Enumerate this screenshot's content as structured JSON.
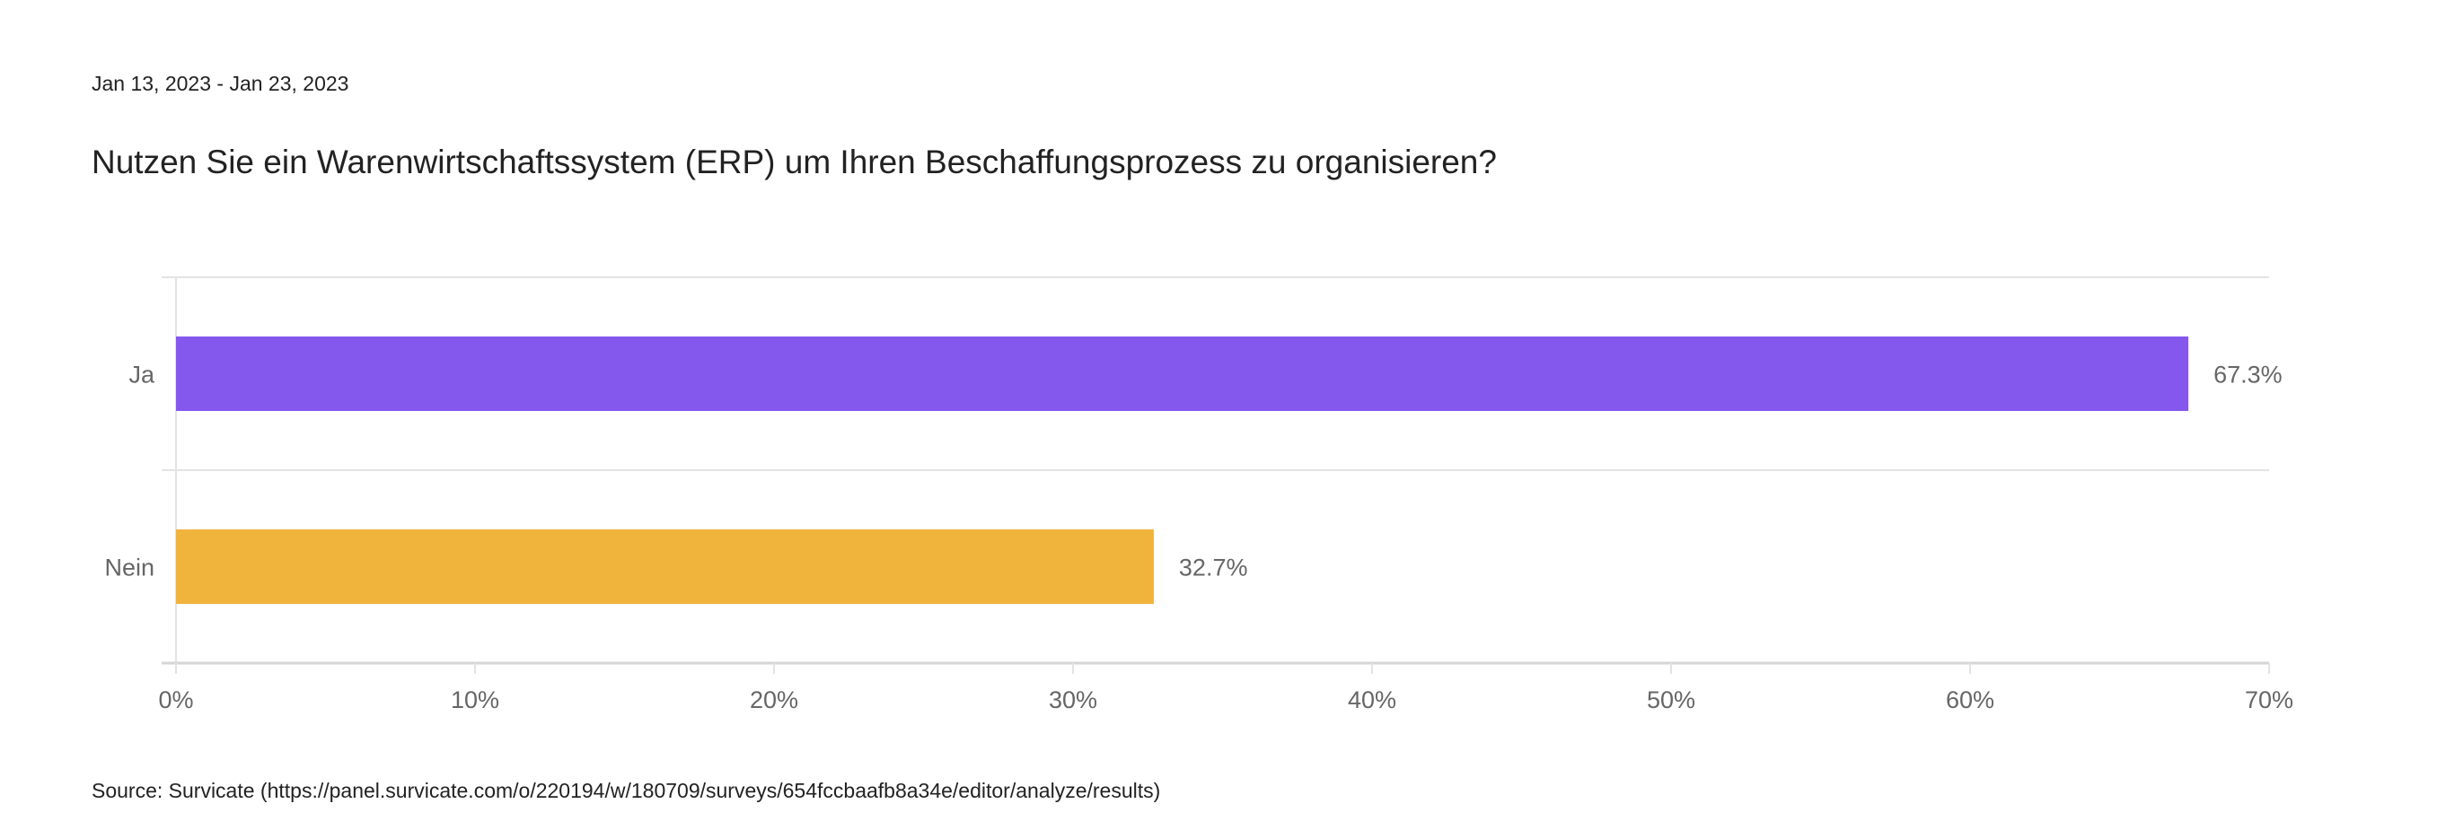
{
  "date_range": "Jan 13, 2023 - Jan 23, 2023",
  "source": "Source: Survicate (https://panel.survicate.com/o/220194/w/180709/surveys/654fccbaafb8a34e/editor/analyze/results)",
  "chart_data": {
    "type": "bar",
    "orientation": "horizontal",
    "title": "Nutzen Sie ein Warenwirtschaftssystem (ERP) um Ihren Beschaffungsprozess zu organisieren?",
    "categories": [
      "Ja",
      "Nein"
    ],
    "values": [
      67.3,
      32.7
    ],
    "data_labels": [
      "67.3%",
      "32.7%"
    ],
    "colors": [
      "#8558ED",
      "#F0B33C"
    ],
    "xlim": [
      0,
      70
    ],
    "xticks": [
      0,
      10,
      20,
      30,
      40,
      50,
      60,
      70
    ],
    "xtick_labels": [
      "0%",
      "10%",
      "20%",
      "30%",
      "40%",
      "50%",
      "60%",
      "70%"
    ],
    "xlabel": "",
    "ylabel": "",
    "grid": true
  }
}
